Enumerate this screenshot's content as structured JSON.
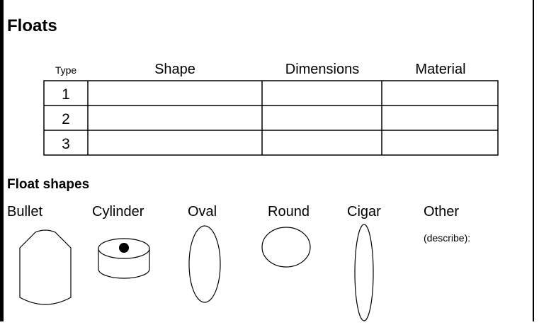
{
  "header": {
    "title": "Floats"
  },
  "table": {
    "columns": [
      "Type",
      "Shape",
      "Dimensions",
      "Material"
    ],
    "rows": [
      "1",
      "2",
      "3"
    ]
  },
  "shapes_section": {
    "title": "Float shapes",
    "shapes": [
      "Bullet",
      "Cylinder",
      "Oval",
      "Round",
      "Cigar",
      "Other"
    ],
    "other_note": "(describe):"
  }
}
